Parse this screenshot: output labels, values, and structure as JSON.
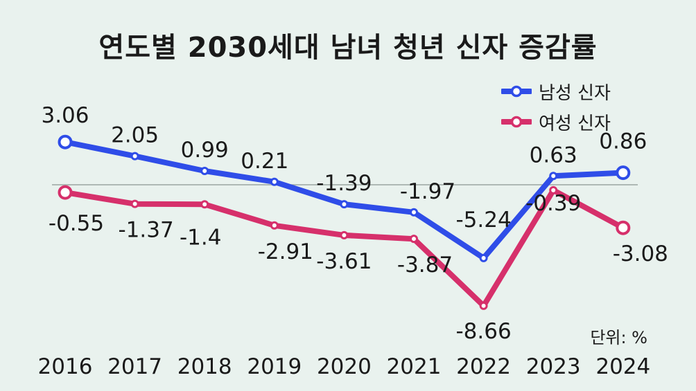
{
  "title": "연도별 2030세대 남녀 청년 신자 증감률",
  "unit_label": "단위: %",
  "chart_data": {
    "type": "line",
    "title": "연도별 2030세대 남녀 청년 신자 증감률",
    "x": [
      "2016",
      "2017",
      "2018",
      "2019",
      "2020",
      "2021",
      "2022",
      "2023",
      "2024"
    ],
    "series": [
      {
        "name": "남성 신자",
        "color": "#2f4de8",
        "values": [
          3.06,
          2.05,
          0.99,
          0.21,
          -1.39,
          -1.97,
          -5.24,
          0.63,
          0.86
        ],
        "labels": [
          "3.06",
          "2.05",
          "0.99",
          "0.21",
          "-1.39",
          "-1.97",
          "-5.24",
          "0.63",
          "0.86"
        ]
      },
      {
        "name": "여성 신자",
        "color": "#d6306b",
        "values": [
          -0.55,
          -1.37,
          -1.4,
          -2.91,
          -3.61,
          -3.87,
          -8.66,
          -0.39,
          -3.08
        ],
        "labels": [
          "-0.55",
          "-1.37",
          "-1.4",
          "-2.91",
          "-3.61",
          "-3.87",
          "-8.66",
          "-0.39",
          "-3.08"
        ]
      }
    ],
    "grid": false,
    "legend_position": "top-right"
  }
}
